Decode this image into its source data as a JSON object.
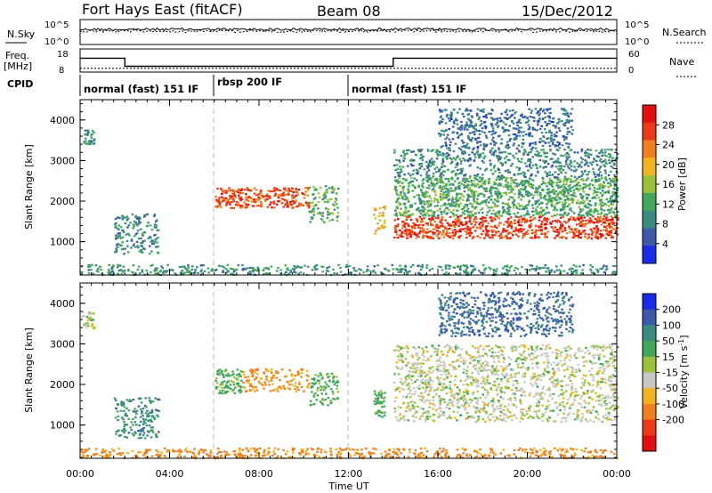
{
  "header": {
    "title": "Fort Hays East (fitACF)",
    "beam": "Beam 08",
    "date": "15/Dec/2012"
  },
  "nsky_panel": {
    "left_label": "N.Sky",
    "right_label": "N.Search",
    "left_ticks": [
      "10^5",
      "10^0"
    ],
    "right_ticks": [
      "10^5",
      "10^0"
    ]
  },
  "freq_panel": {
    "left_label_1": "Freq.",
    "left_label_2": "[MHz]",
    "right_label": "Nave",
    "left_ticks": [
      "18",
      "8"
    ],
    "right_ticks": [
      "60",
      "0"
    ],
    "freq_segments": [
      {
        "start_hour": 0,
        "end_hour": 2,
        "mhz": 14
      },
      {
        "start_hour": 2,
        "end_hour": 14,
        "mhz": 10.5
      },
      {
        "start_hour": 14,
        "end_hour": 24,
        "mhz": 14
      }
    ],
    "nave_level": 10
  },
  "cpid": {
    "label": "CPID",
    "modes": [
      {
        "name": "normal (fast) 151 IF",
        "start_hour": 0,
        "end_hour": 6
      },
      {
        "name": "rbsp 200 IF",
        "start_hour": 6,
        "end_hour": 12
      },
      {
        "name": "normal (fast) 151 IF",
        "start_hour": 12,
        "end_hour": 24
      }
    ]
  },
  "chart_data": [
    {
      "type": "heatmap",
      "panel": "power",
      "ylabel": "Slant Range [km]",
      "xlabel": "Time UT",
      "xlim": [
        0,
        24
      ],
      "ylim": [
        180,
        4500
      ],
      "x_ticks": [
        "00:00",
        "04:00",
        "08:00",
        "12:00",
        "16:00",
        "20:00",
        "00:00"
      ],
      "y_ticks": [
        1000,
        2000,
        3000,
        4000
      ],
      "colorbar": {
        "label": "Power [dB]",
        "ticks": [
          4,
          8,
          12,
          16,
          20,
          24,
          28
        ],
        "range": [
          0,
          32
        ],
        "colors": [
          "#1a2be8",
          "#3c5aa8",
          "#3a8a82",
          "#43a85a",
          "#9ac23c",
          "#f2b41e",
          "#f07f1e",
          "#ea3a16",
          "#e01010"
        ]
      },
      "regions": [
        {
          "x": [
            0.05,
            0.6
          ],
          "y": [
            3400,
            3800
          ],
          "v": 10
        },
        {
          "x": [
            1.5,
            3.5
          ],
          "y": [
            700,
            1700
          ],
          "v": 9
        },
        {
          "x": [
            6.0,
            10.2
          ],
          "y": [
            1850,
            2350
          ],
          "v": 26
        },
        {
          "x": [
            10.2,
            11.5
          ],
          "y": [
            1500,
            2400
          ],
          "v": 13
        },
        {
          "x": [
            13.1,
            13.6
          ],
          "y": [
            1200,
            1900
          ],
          "v": 18
        },
        {
          "x": [
            14.0,
            24.0
          ],
          "y": [
            1100,
            1650
          ],
          "v": 27
        },
        {
          "x": [
            14.0,
            24.0
          ],
          "y": [
            1650,
            2600
          ],
          "v": 12
        },
        {
          "x": [
            14.0,
            24.0
          ],
          "y": [
            2600,
            3300
          ],
          "v": 9
        },
        {
          "x": [
            16.0,
            22.0
          ],
          "y": [
            3300,
            4300
          ],
          "v": 7
        },
        {
          "x": [
            0.0,
            24.0
          ],
          "y": [
            200,
            450
          ],
          "v": 10
        }
      ]
    },
    {
      "type": "heatmap",
      "panel": "velocity",
      "ylabel": "Slant Range [km]",
      "xlabel": "Time UT",
      "xlim": [
        0,
        24
      ],
      "ylim": [
        180,
        4500
      ],
      "x_ticks": [
        "00:00",
        "04:00",
        "08:00",
        "12:00",
        "16:00",
        "20:00",
        "00:00"
      ],
      "y_ticks": [
        1000,
        2000,
        3000,
        4000
      ],
      "colorbar": {
        "label": "Velocity [m s^-1]",
        "ticks": [
          "200",
          "100",
          "50",
          "15",
          "-15",
          "-50",
          "-100",
          "-200"
        ],
        "colors": [
          "#1a2be8",
          "#3c5aa8",
          "#3a8a82",
          "#43a85a",
          "#9ac23c",
          "#c8c8c0",
          "#f2b41e",
          "#f07f1e",
          "#ea3a16",
          "#e01010"
        ]
      },
      "regions": [
        {
          "x": [
            0.05,
            0.6
          ],
          "y": [
            3400,
            3800
          ],
          "v": 0
        },
        {
          "x": [
            1.5,
            3.5
          ],
          "y": [
            700,
            1700
          ],
          "v": 60
        },
        {
          "x": [
            6.0,
            7.2
          ],
          "y": [
            1800,
            2400
          ],
          "v": 30
        },
        {
          "x": [
            7.2,
            10.2
          ],
          "y": [
            1850,
            2400
          ],
          "v": -60
        },
        {
          "x": [
            10.2,
            11.5
          ],
          "y": [
            1500,
            2300
          ],
          "v": 30
        },
        {
          "x": [
            13.1,
            13.6
          ],
          "y": [
            1200,
            1900
          ],
          "v": 30
        },
        {
          "x": [
            14.0,
            24.0
          ],
          "y": [
            1100,
            3000
          ],
          "v": 0
        },
        {
          "x": [
            16.0,
            22.0
          ],
          "y": [
            3200,
            4300
          ],
          "v": 80
        },
        {
          "x": [
            0.0,
            24.0
          ],
          "y": [
            200,
            450
          ],
          "v": -60
        }
      ]
    }
  ]
}
